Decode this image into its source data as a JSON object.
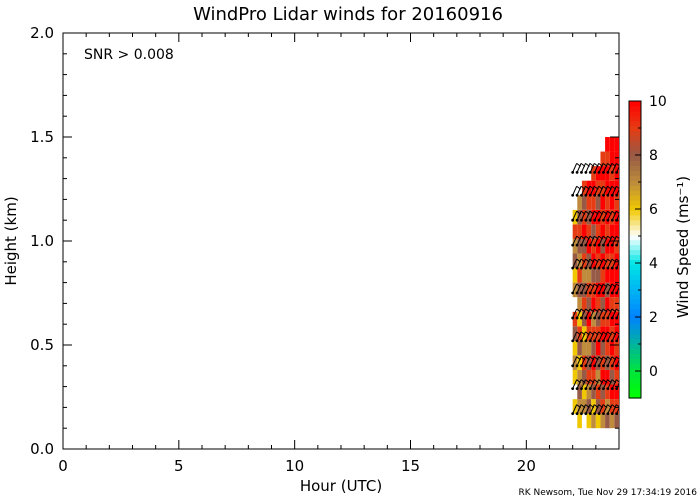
{
  "chart_data": {
    "type": "heatmap",
    "title": "WindPro Lidar winds for 20160916",
    "annotation": "SNR > 0.008",
    "xlabel": "Hour (UTC)",
    "ylabel": "Height (km)",
    "xlim": [
      0,
      24
    ],
    "ylim": [
      0.0,
      2.0
    ],
    "xticks": [
      "0",
      "5",
      "10",
      "15",
      "20"
    ],
    "yticks": [
      "0.0",
      "0.5",
      "1.0",
      "1.5",
      "2.0"
    ],
    "colorbar": {
      "label": "Wind Speed (ms⁻¹)",
      "range": [
        -1,
        10
      ],
      "ticks": [
        "0",
        "2",
        "4",
        "6",
        "8",
        "10"
      ]
    },
    "data_coverage": {
      "hour_start": 22.0,
      "hour_end": 24.0,
      "height_min_km": 0.1,
      "height_max_km": 1.45
    },
    "wind_barb_levels_km": [
      0.17,
      0.29,
      0.4,
      0.52,
      0.63,
      0.75,
      0.87,
      0.98,
      1.1,
      1.22,
      1.33
    ],
    "profiles": [
      {
        "hour": 22.1,
        "speeds": [
          5,
          6,
          5,
          6,
          7,
          6,
          8,
          9,
          5,
          7,
          6,
          8,
          7,
          9,
          6,
          5
        ]
      },
      {
        "hour": 22.3,
        "speeds": [
          6,
          7,
          8,
          7,
          6,
          8,
          9,
          6,
          7,
          8,
          9,
          7,
          8,
          9,
          8,
          7
        ]
      },
      {
        "hour": 22.5,
        "speeds": [
          5,
          7,
          6,
          8,
          9,
          7,
          6,
          8,
          9,
          8,
          7,
          9,
          8,
          10,
          9,
          8,
          9
        ]
      },
      {
        "hour": 22.7,
        "speeds": [
          6,
          8,
          7,
          9,
          8,
          7,
          9,
          10,
          8,
          9,
          7,
          8,
          10,
          9,
          8,
          9,
          10
        ]
      },
      {
        "hour": 22.9,
        "speeds": [
          7,
          6,
          8,
          9,
          10,
          8,
          9,
          7,
          10,
          9,
          8,
          10,
          9,
          8,
          10,
          9,
          10,
          9
        ]
      },
      {
        "hour": 23.1,
        "speeds": [
          6,
          8,
          9,
          7,
          8,
          10,
          9,
          8,
          9,
          10,
          8,
          9,
          10,
          9,
          10,
          8,
          9,
          10
        ]
      },
      {
        "hour": 23.3,
        "speeds": [
          7,
          9,
          8,
          10,
          9,
          8,
          10,
          9,
          8,
          10,
          9,
          10,
          8,
          10,
          9,
          10,
          9,
          10,
          9
        ]
      },
      {
        "hour": 23.5,
        "speeds": [
          8,
          7,
          9,
          10,
          8,
          9,
          10,
          9,
          10,
          8,
          10,
          9,
          10,
          9,
          10,
          9,
          10,
          10,
          9,
          10
        ]
      },
      {
        "hour": 23.7,
        "speeds": [
          7,
          9,
          10,
          8,
          9,
          10,
          9,
          10,
          9,
          10,
          10,
          9,
          10,
          10,
          9,
          10,
          10,
          9,
          10,
          10
        ]
      },
      {
        "hour": 23.9,
        "speeds": [
          8,
          9,
          10,
          9,
          10,
          9,
          10,
          10,
          9,
          10,
          10,
          10,
          9,
          10,
          10,
          9,
          10,
          10,
          10,
          10
        ]
      }
    ]
  },
  "footer": {
    "credit": "RK Newsom, Tue Nov 29 17:34:19 2016"
  }
}
